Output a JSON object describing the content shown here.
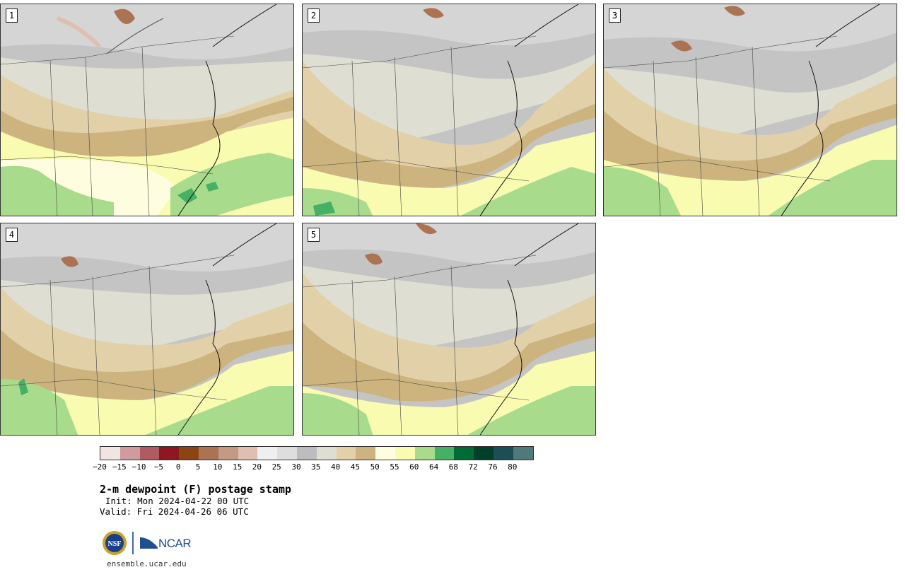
{
  "panels": [
    {
      "label": "1"
    },
    {
      "label": "2"
    },
    {
      "label": "3"
    },
    {
      "label": "4"
    },
    {
      "label": "5"
    }
  ],
  "colorbar": {
    "colors": [
      "#f3e4e4",
      "#d19a9e",
      "#b05a63",
      "#8e1822",
      "#8b4513",
      "#ac7352",
      "#c49a82",
      "#dfc0b0",
      "#efefef",
      "#dedede",
      "#bdbdbd",
      "#dedfd2",
      "#e2d0a8",
      "#cdb47e",
      "#fffde0",
      "#f8fbb0",
      "#a9db8c",
      "#46b065",
      "#006b36",
      "#00402a",
      "#1b4f55",
      "#4e7a7a"
    ],
    "ticks": [
      "−20",
      "−15",
      "−10",
      "−5",
      "0",
      "5",
      "10",
      "15",
      "20",
      "25",
      "30",
      "35",
      "40",
      "45",
      "50",
      "55",
      "60",
      "64",
      "68",
      "72",
      "76",
      "80"
    ]
  },
  "title": "2-m dewpoint (F) postage stamp",
  "init": "Init: Mon 2024-04-22 00 UTC",
  "valid": "Valid: Fri 2024-04-26 06 UTC",
  "logos": {
    "nsf": "NSF",
    "ncar": "NCAR"
  },
  "footer": "ensemble.ucar.edu"
}
